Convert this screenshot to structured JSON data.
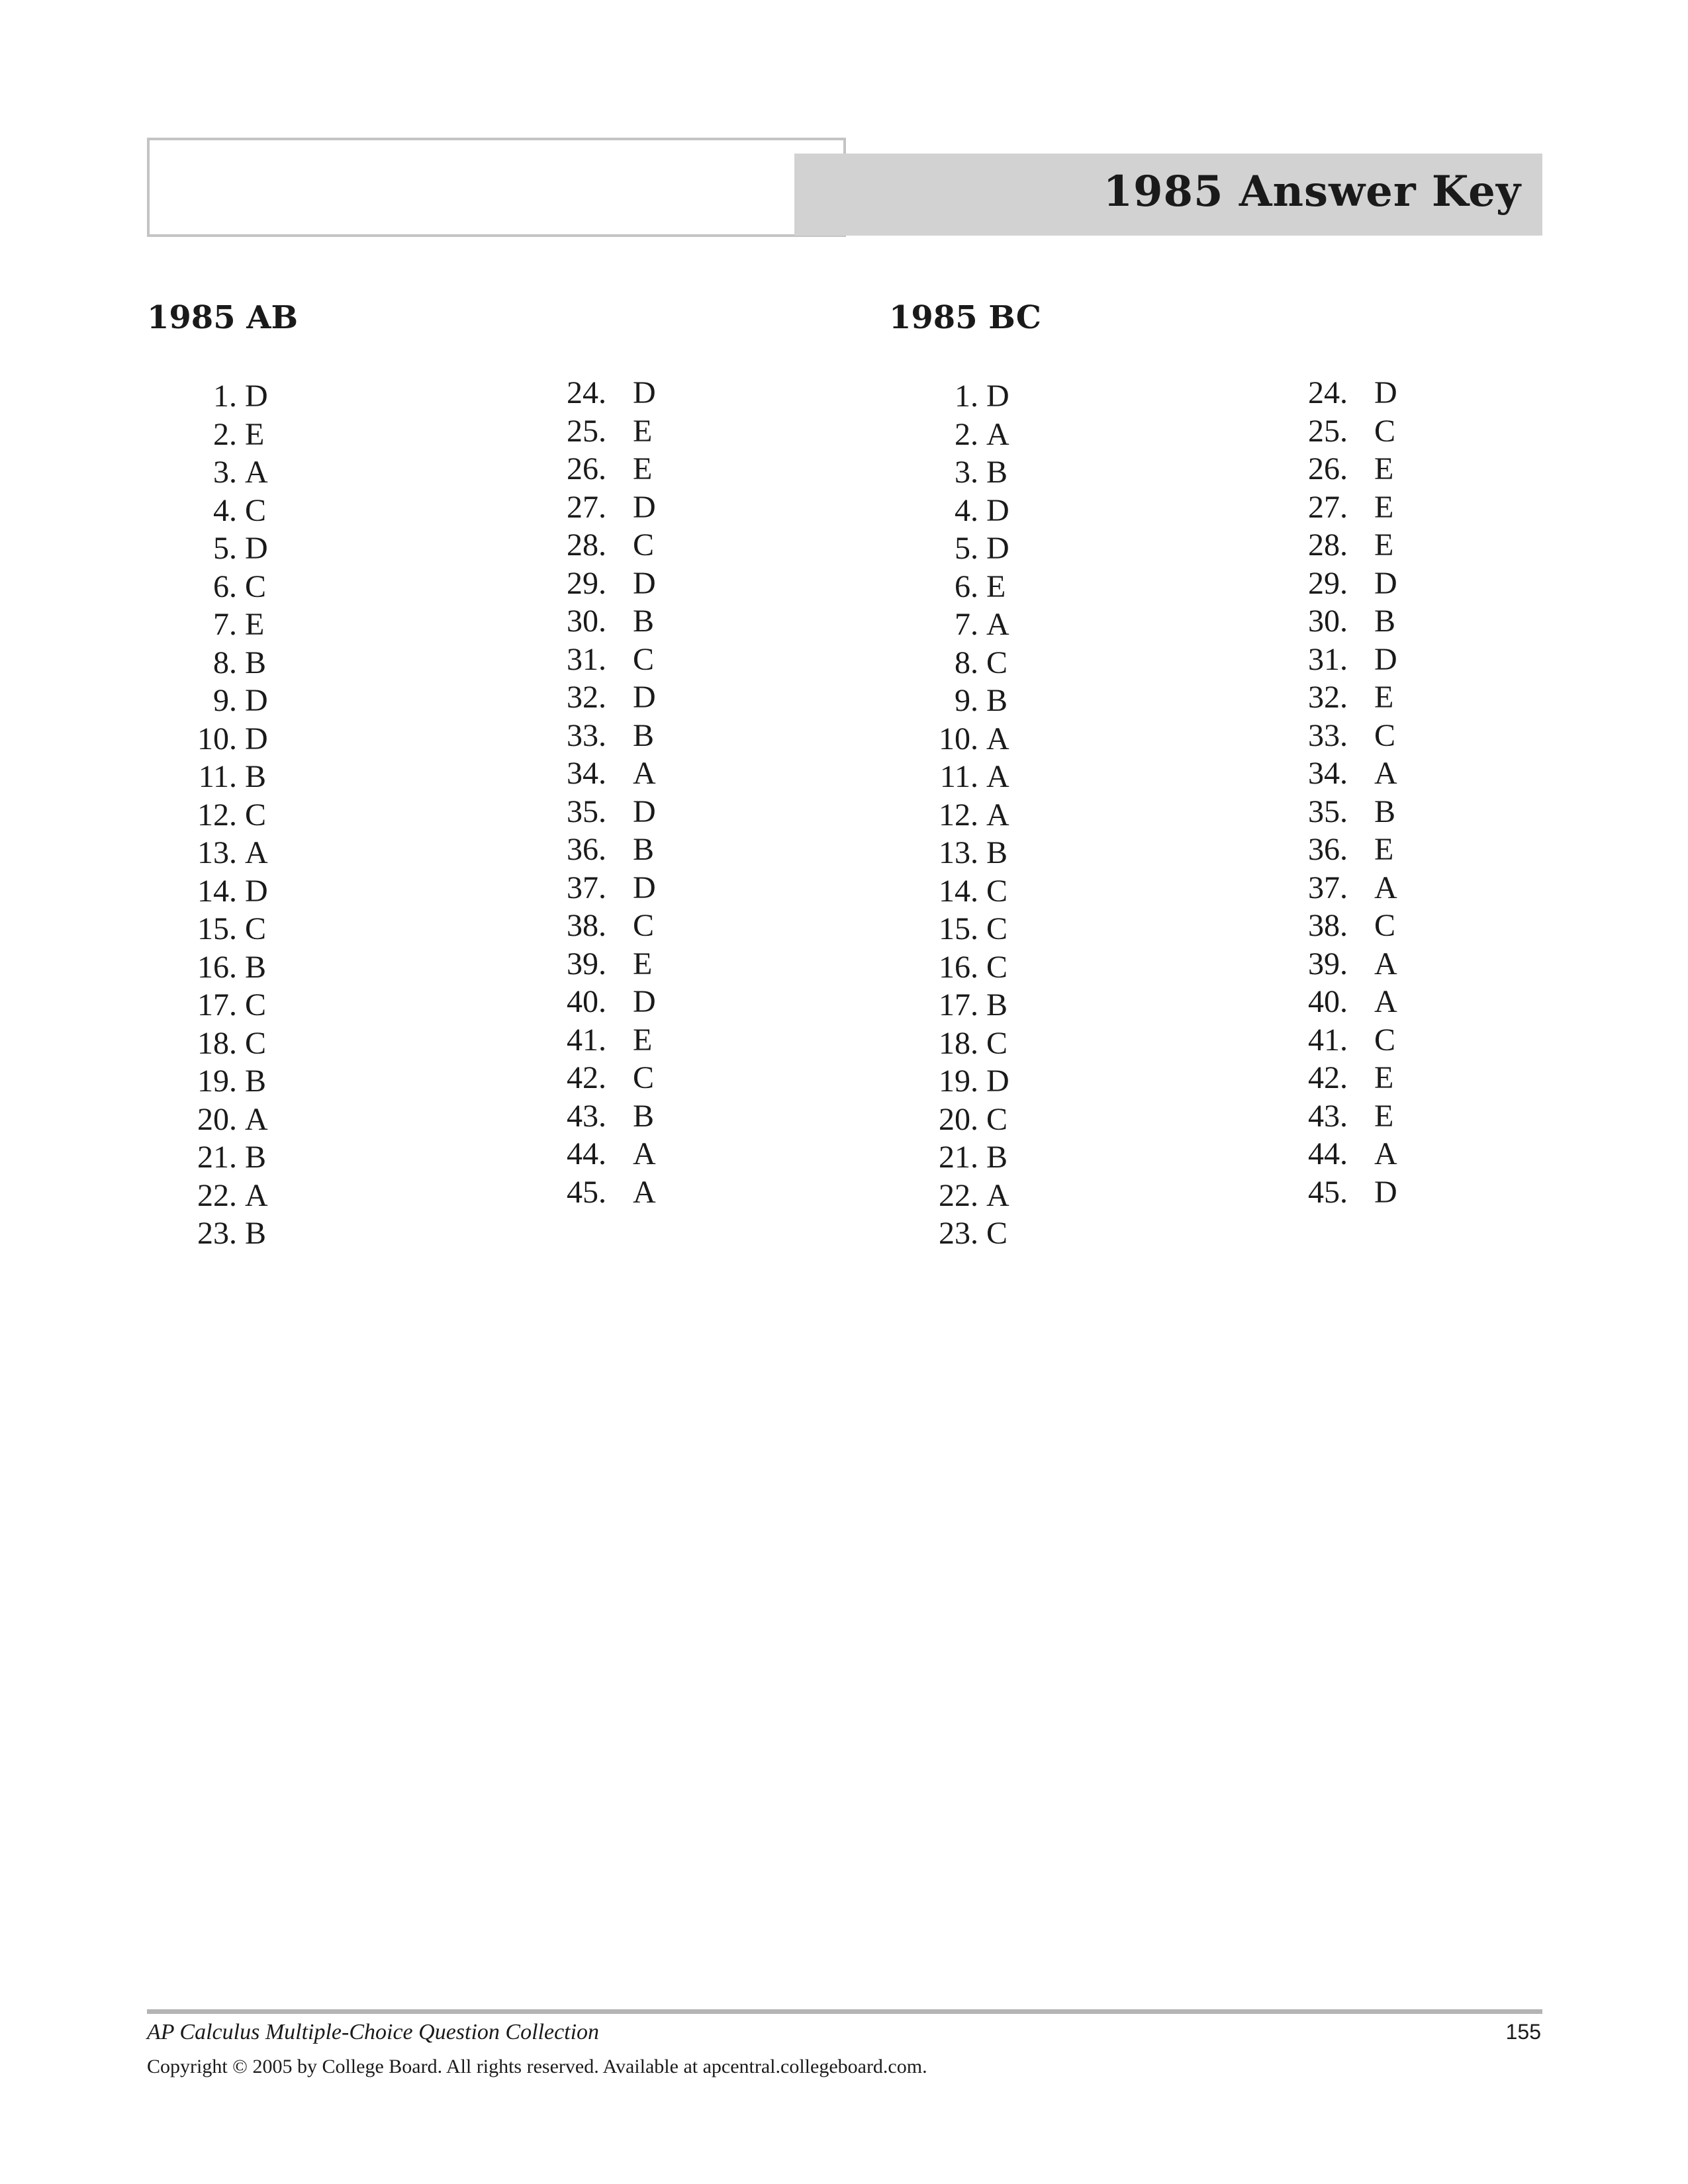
{
  "header": {
    "title": "1985 Answer Key"
  },
  "sections": {
    "ab": {
      "heading": "1985 AB",
      "left": [
        {
          "num": "1.",
          "ans": "D"
        },
        {
          "num": "2.",
          "ans": "E"
        },
        {
          "num": "3.",
          "ans": "A"
        },
        {
          "num": "4.",
          "ans": "C"
        },
        {
          "num": "5.",
          "ans": "D"
        },
        {
          "num": "6.",
          "ans": "C"
        },
        {
          "num": "7.",
          "ans": "E"
        },
        {
          "num": "8.",
          "ans": "B"
        },
        {
          "num": "9.",
          "ans": "D"
        },
        {
          "num": "10.",
          "ans": "D"
        },
        {
          "num": "11.",
          "ans": "B"
        },
        {
          "num": "12.",
          "ans": "C"
        },
        {
          "num": "13.",
          "ans": "A"
        },
        {
          "num": "14.",
          "ans": "D"
        },
        {
          "num": "15.",
          "ans": "C"
        },
        {
          "num": "16.",
          "ans": "B"
        },
        {
          "num": "17.",
          "ans": "C"
        },
        {
          "num": "18.",
          "ans": "C"
        },
        {
          "num": "19.",
          "ans": "B"
        },
        {
          "num": "20.",
          "ans": "A"
        },
        {
          "num": "21.",
          "ans": "B"
        },
        {
          "num": "22.",
          "ans": "A"
        },
        {
          "num": "23.",
          "ans": "B"
        }
      ],
      "right": [
        {
          "num": "24.",
          "ans": "D"
        },
        {
          "num": "25.",
          "ans": "E"
        },
        {
          "num": "26.",
          "ans": "E"
        },
        {
          "num": "27.",
          "ans": "D"
        },
        {
          "num": "28.",
          "ans": "C"
        },
        {
          "num": "29.",
          "ans": "D"
        },
        {
          "num": "30.",
          "ans": "B"
        },
        {
          "num": "31.",
          "ans": "C"
        },
        {
          "num": "32.",
          "ans": "D"
        },
        {
          "num": "33.",
          "ans": "B"
        },
        {
          "num": "34.",
          "ans": "A"
        },
        {
          "num": "35.",
          "ans": "D"
        },
        {
          "num": "36.",
          "ans": "B"
        },
        {
          "num": "37.",
          "ans": "D"
        },
        {
          "num": "38.",
          "ans": "C"
        },
        {
          "num": "39.",
          "ans": "E"
        },
        {
          "num": "40.",
          "ans": "D"
        },
        {
          "num": "41.",
          "ans": "E"
        },
        {
          "num": "42.",
          "ans": "C"
        },
        {
          "num": "43.",
          "ans": "B"
        },
        {
          "num": "44.",
          "ans": "A"
        },
        {
          "num": "45.",
          "ans": "A"
        }
      ]
    },
    "bc": {
      "heading": "1985 BC",
      "left": [
        {
          "num": "1.",
          "ans": "D"
        },
        {
          "num": "2.",
          "ans": "A"
        },
        {
          "num": "3.",
          "ans": "B"
        },
        {
          "num": "4.",
          "ans": "D"
        },
        {
          "num": "5.",
          "ans": "D"
        },
        {
          "num": "6.",
          "ans": "E"
        },
        {
          "num": "7.",
          "ans": "A"
        },
        {
          "num": "8.",
          "ans": "C"
        },
        {
          "num": "9.",
          "ans": "B"
        },
        {
          "num": "10.",
          "ans": "A"
        },
        {
          "num": "11.",
          "ans": "A"
        },
        {
          "num": "12.",
          "ans": "A"
        },
        {
          "num": "13.",
          "ans": "B"
        },
        {
          "num": "14.",
          "ans": "C"
        },
        {
          "num": "15.",
          "ans": "C"
        },
        {
          "num": "16.",
          "ans": "C"
        },
        {
          "num": "17.",
          "ans": "B"
        },
        {
          "num": "18.",
          "ans": "C"
        },
        {
          "num": "19.",
          "ans": "D"
        },
        {
          "num": "20.",
          "ans": "C"
        },
        {
          "num": "21.",
          "ans": "B"
        },
        {
          "num": "22.",
          "ans": "A"
        },
        {
          "num": "23.",
          "ans": "C"
        }
      ],
      "right": [
        {
          "num": "24.",
          "ans": "D"
        },
        {
          "num": "25.",
          "ans": "C"
        },
        {
          "num": "26.",
          "ans": "E"
        },
        {
          "num": "27.",
          "ans": "E"
        },
        {
          "num": "28.",
          "ans": "E"
        },
        {
          "num": "29.",
          "ans": "D"
        },
        {
          "num": "30.",
          "ans": "B"
        },
        {
          "num": "31.",
          "ans": "D"
        },
        {
          "num": "32.",
          "ans": "E"
        },
        {
          "num": "33.",
          "ans": "C"
        },
        {
          "num": "34.",
          "ans": "A"
        },
        {
          "num": "35.",
          "ans": "B"
        },
        {
          "num": "36.",
          "ans": "E"
        },
        {
          "num": "37.",
          "ans": "A"
        },
        {
          "num": "38.",
          "ans": "C"
        },
        {
          "num": "39.",
          "ans": "A"
        },
        {
          "num": "40.",
          "ans": "A"
        },
        {
          "num": "41.",
          "ans": "C"
        },
        {
          "num": "42.",
          "ans": "E"
        },
        {
          "num": "43.",
          "ans": "E"
        },
        {
          "num": "44.",
          "ans": "A"
        },
        {
          "num": "45.",
          "ans": "D"
        }
      ]
    }
  },
  "footer": {
    "title": "AP Calculus Multiple-Choice Question Collection",
    "page_number": "155",
    "copyright": "Copyright © 2005 by College Board. All rights reserved. Available at apcentral.collegeboard.com."
  }
}
